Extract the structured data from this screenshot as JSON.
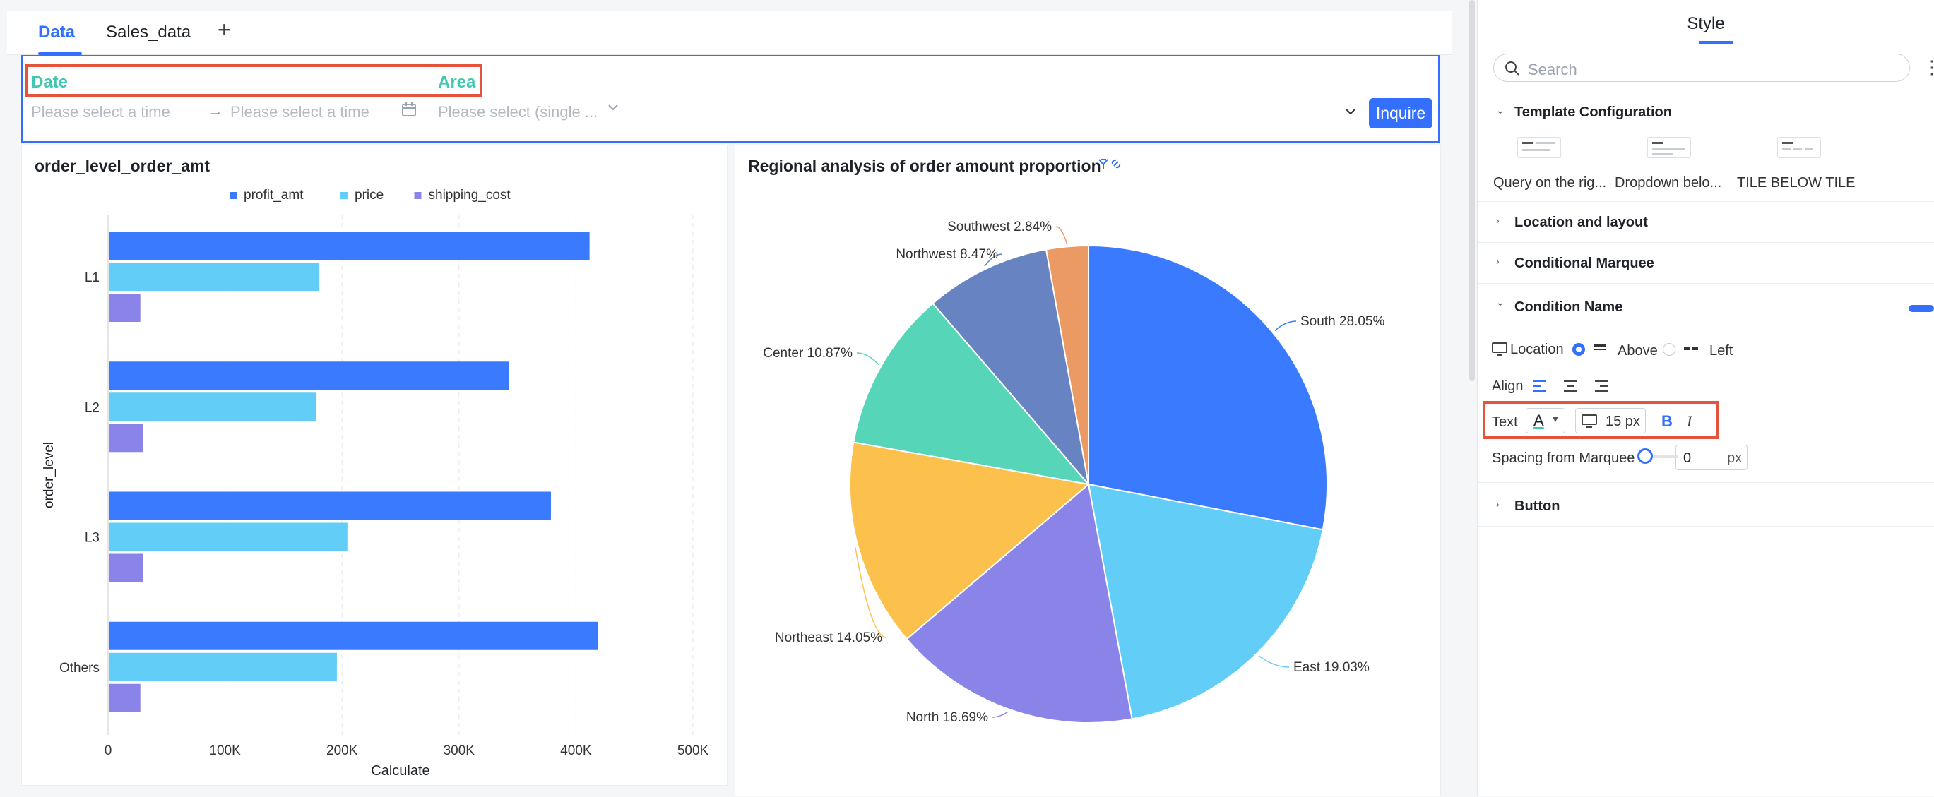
{
  "tabs": [
    {
      "label": "Data",
      "active": true
    },
    {
      "label": "Sales_data",
      "active": false
    }
  ],
  "tab_add_label": "+",
  "query": {
    "date_label": "Date",
    "area_label": "Area",
    "date_start_placeholder": "Please select a time",
    "date_end_placeholder": "Please select a time",
    "area_placeholder": "Please select (single ...",
    "inquire_label": "Inquire"
  },
  "bar_chart": {
    "title": "order_level_order_amt",
    "chart_data": {
      "type": "bar",
      "orientation": "horizontal",
      "categories": [
        "L1",
        "L2",
        "L3",
        "Others"
      ],
      "series": [
        {
          "name": "profit_amt",
          "color": "#3a7afe",
          "values": [
            411000,
            342000,
            378000,
            418000
          ]
        },
        {
          "name": "price",
          "color": "#62cdf6",
          "values": [
            180000,
            177000,
            204000,
            195000
          ]
        },
        {
          "name": "shipping_cost",
          "color": "#8b84e8",
          "values": [
            27000,
            29000,
            29000,
            27000
          ]
        }
      ],
      "xlabel": "Calculate",
      "ylabel": "order_level",
      "xlim": [
        0,
        500000
      ],
      "xticks": [
        "0",
        "100K",
        "200K",
        "300K",
        "400K",
        "500K"
      ],
      "legend": "top-center",
      "grid": "vertical-dashed"
    }
  },
  "pie_chart": {
    "title": "Regional analysis of order amount proportion",
    "chart_data": {
      "type": "pie",
      "slices": [
        {
          "label": "South",
          "value": 28.05,
          "text": "South 28.05%",
          "color": "#3a7afe"
        },
        {
          "label": "East",
          "value": 19.03,
          "text": "East 19.03%",
          "color": "#62cdf6"
        },
        {
          "label": "North",
          "value": 16.69,
          "text": "North 16.69%",
          "color": "#8b84e8"
        },
        {
          "label": "Northeast",
          "value": 14.05,
          "text": "Northeast 14.05%",
          "color": "#fcc04c"
        },
        {
          "label": "Center",
          "value": 10.87,
          "text": "Center 10.87%",
          "color": "#56d5b8"
        },
        {
          "label": "Northwest",
          "value": 8.47,
          "text": "Northwest 8.47%",
          "color": "#6883c2"
        },
        {
          "label": "Southwest",
          "value": 2.84,
          "text": "Southwest 2.84%",
          "color": "#eb9a63"
        }
      ]
    }
  },
  "panel": {
    "title": "Style",
    "search_placeholder": "Search",
    "sections": {
      "template": "Template Configuration",
      "location_layout": "Location and layout",
      "conditional_marquee": "Conditional Marquee",
      "condition_name": "Condition Name",
      "button": "Button"
    },
    "templates": [
      "Query on the rig...",
      "Dropdown belo...",
      "TILE BELOW TILE"
    ],
    "location_label": "Location",
    "above_label": "Above",
    "left_label": "Left",
    "align_label": "Align",
    "text_label": "Text",
    "font_color_glyph": "A",
    "font_size": "15 px",
    "bold_glyph": "B",
    "italic_glyph": "I",
    "spacing_label": "Spacing from Marquee",
    "spacing_value": "0",
    "spacing_unit": "px"
  }
}
